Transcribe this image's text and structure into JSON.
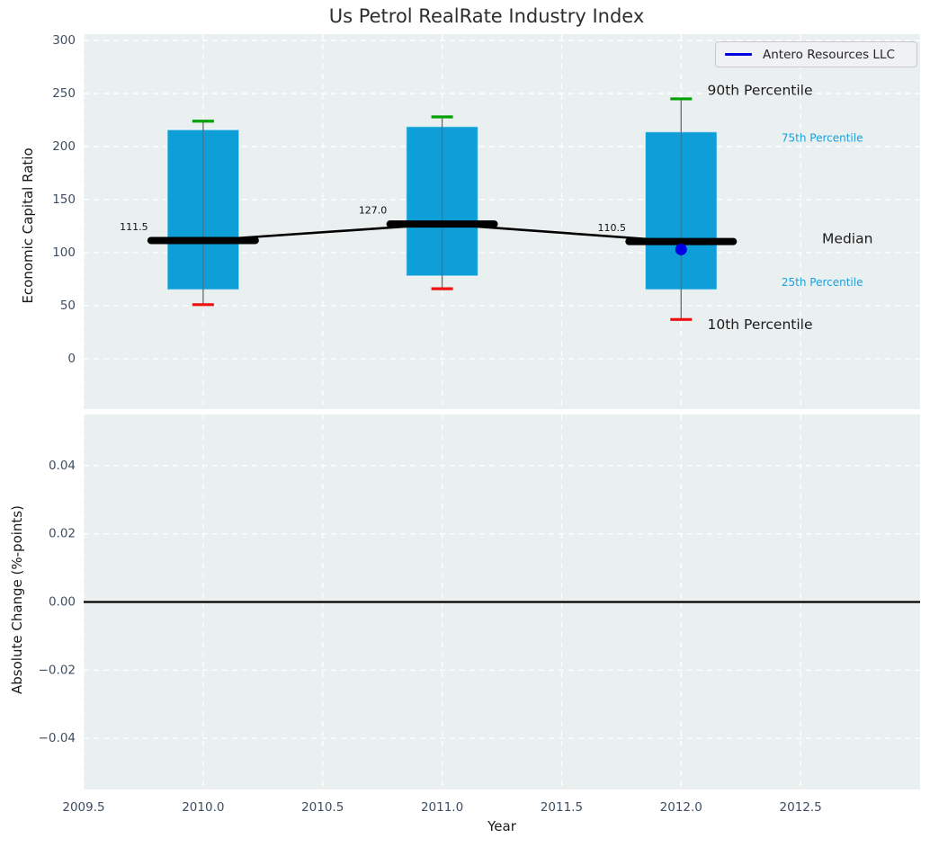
{
  "title": "Us Petrol RealRate Industry Index",
  "legend": {
    "label": "Antero Resources LLC",
    "line_color": "#0000e0"
  },
  "colors": {
    "axes_bg": "#eaeff0",
    "grid": "#ffffff",
    "box_fill": "#0e9ed8",
    "box_edge": "rgba(255,255,255,0.55)",
    "whisker": "#6a6a6a",
    "cap_high": "#00a000",
    "cap_low": "#ee1111",
    "median": "#000000",
    "company": "#0000e6",
    "tick_label": "#3e4e63",
    "annotation_cyan": "#1d9fd9",
    "zero_line": "#000000"
  },
  "chart_data": {
    "type": "box",
    "title": "Us Petrol RealRate Industry Index",
    "xlabel": "Year",
    "xlim": [
      2009.5,
      2013.0
    ],
    "xticks": [
      {
        "v": 2009.5,
        "label": "2009.5"
      },
      {
        "v": 2010.0,
        "label": "2010.0"
      },
      {
        "v": 2010.5,
        "label": "2010.5"
      },
      {
        "v": 2011.0,
        "label": "2011.0"
      },
      {
        "v": 2011.5,
        "label": "2011.5"
      },
      {
        "v": 2012.0,
        "label": "2012.0"
      },
      {
        "v": 2012.5,
        "label": "2012.5"
      }
    ],
    "top": {
      "ylabel": "Economic Capital Ratio",
      "ylim": [
        -47.5,
        306
      ],
      "yticks": [
        {
          "v": 0,
          "label": "0"
        },
        {
          "v": 50,
          "label": "50"
        },
        {
          "v": 100,
          "label": "100"
        },
        {
          "v": 150,
          "label": "150"
        },
        {
          "v": 200,
          "label": "200"
        },
        {
          "v": 250,
          "label": "250"
        },
        {
          "v": 300,
          "label": "300"
        }
      ],
      "boxes": [
        {
          "x": 2010,
          "p10": 51,
          "p25": 65,
          "median": 111.5,
          "p75": 216,
          "p90": 224,
          "median_label": "111.5"
        },
        {
          "x": 2011,
          "p10": 66,
          "p25": 78,
          "median": 127.0,
          "p75": 219,
          "p90": 228,
          "median_label": "127.0"
        },
        {
          "x": 2012,
          "p10": 37,
          "p25": 65,
          "median": 110.5,
          "p75": 214,
          "p90": 245,
          "median_label": "110.5"
        }
      ],
      "company_series": {
        "name": "Antero Resources LLC",
        "points": [
          {
            "x": 2012,
            "y": 103
          }
        ]
      },
      "annotations": [
        {
          "text": "90th Percentile",
          "x": 2012.11,
          "y": 253,
          "style": "lg"
        },
        {
          "text": "75th Percentile",
          "x": 2012.42,
          "y": 208,
          "style": "sm"
        },
        {
          "text": "Median",
          "x": 2012.59,
          "y": 113,
          "style": "lg"
        },
        {
          "text": "25th Percentile",
          "x": 2012.42,
          "y": 72,
          "style": "sm"
        },
        {
          "text": "10th Percentile",
          "x": 2012.11,
          "y": 32,
          "style": "lg"
        }
      ]
    },
    "bottom": {
      "ylabel": "Absolute Change (%-points)",
      "ylim": [
        -0.055,
        0.055
      ],
      "yticks": [
        {
          "v": 0.04,
          "label": "0.04"
        },
        {
          "v": 0.02,
          "label": "0.02"
        },
        {
          "v": 0.0,
          "label": "0.00"
        },
        {
          "v": -0.02,
          "label": "−0.02"
        },
        {
          "v": -0.04,
          "label": "−0.04"
        }
      ],
      "zero_line": 0.0
    }
  }
}
